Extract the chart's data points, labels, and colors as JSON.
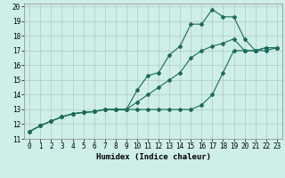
{
  "xlabel": "Humidex (Indice chaleur)",
  "ylabel": "",
  "background_color": "#ceeee8",
  "grid_color": "#b0c8c8",
  "line_color": "#1a6b5a",
  "xlim": [
    -0.5,
    23.5
  ],
  "ylim": [
    11,
    20.2
  ],
  "xticks": [
    0,
    1,
    2,
    3,
    4,
    5,
    6,
    7,
    8,
    9,
    10,
    11,
    12,
    13,
    14,
    15,
    16,
    17,
    18,
    19,
    20,
    21,
    22,
    23
  ],
  "yticks": [
    11,
    12,
    13,
    14,
    15,
    16,
    17,
    18,
    19,
    20
  ],
  "line1_x": [
    0,
    1,
    2,
    3,
    4,
    5,
    6,
    7,
    8,
    9,
    10,
    11,
    12,
    13,
    14,
    15,
    16,
    17,
    18,
    19,
    20,
    21,
    22,
    23
  ],
  "line1_y": [
    11.5,
    11.9,
    12.2,
    12.5,
    12.7,
    12.8,
    12.85,
    13.0,
    13.0,
    13.0,
    13.0,
    13.0,
    13.0,
    13.0,
    13.0,
    13.0,
    13.3,
    14.0,
    15.5,
    17.0,
    17.0,
    17.0,
    17.2,
    17.2
  ],
  "line2_x": [
    0,
    1,
    2,
    3,
    4,
    5,
    6,
    7,
    8,
    9,
    10,
    11,
    12,
    13,
    14,
    15,
    16,
    17,
    18,
    19,
    20,
    21,
    22,
    23
  ],
  "line2_y": [
    11.5,
    11.9,
    12.2,
    12.5,
    12.7,
    12.8,
    12.85,
    13.0,
    13.0,
    13.0,
    14.3,
    15.3,
    15.5,
    16.7,
    17.3,
    18.8,
    18.8,
    19.8,
    19.3,
    19.3,
    17.8,
    17.0,
    17.0,
    17.2
  ],
  "line3_x": [
    0,
    1,
    2,
    3,
    4,
    5,
    6,
    7,
    8,
    9,
    10,
    11,
    12,
    13,
    14,
    15,
    16,
    17,
    18,
    19,
    20,
    21,
    22,
    23
  ],
  "line3_y": [
    11.5,
    11.9,
    12.2,
    12.5,
    12.7,
    12.8,
    12.85,
    13.0,
    13.0,
    13.0,
    13.5,
    14.0,
    14.5,
    15.0,
    15.5,
    16.5,
    17.0,
    17.3,
    17.5,
    17.8,
    17.0,
    17.0,
    17.2,
    17.2
  ],
  "marker": "D",
  "markersize": 2.0,
  "linewidth": 0.8,
  "tick_fontsize": 5.5,
  "xlabel_fontsize": 6.5
}
